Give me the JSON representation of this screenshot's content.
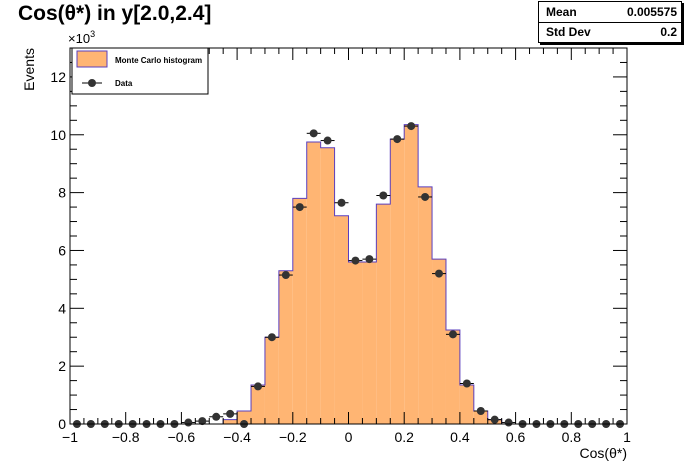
{
  "title": "Cos(θ*) in y[2.0,2.4]",
  "stats": {
    "mean_label": "Mean",
    "mean_value": "0.005575",
    "std_label": "Std Dev",
    "std_value": "0.2"
  },
  "chart_data": {
    "type": "bar",
    "title": "Cos(θ*) in y[2.0,2.4]",
    "xlabel": "Cos(θ*)",
    "ylabel": "Events",
    "y_multiplier_label": "×10",
    "y_multiplier_exponent": "3",
    "xlim": [
      -1,
      1
    ],
    "ylim": [
      0,
      13000
    ],
    "x_ticks": [
      "−1",
      "−0.8",
      "−0.6",
      "−0.4",
      "−0.2",
      "0",
      "0.2",
      "0.4",
      "0.6",
      "0.8",
      "1"
    ],
    "x_tick_values": [
      -1,
      -0.8,
      -0.6,
      -0.4,
      -0.2,
      0,
      0.2,
      0.4,
      0.6,
      0.8,
      1
    ],
    "y_ticks": [
      "0",
      "2",
      "4",
      "6",
      "8",
      "10",
      "12"
    ],
    "y_tick_values": [
      0,
      2000,
      4000,
      6000,
      8000,
      10000,
      12000
    ],
    "grid": false,
    "legend_position": "top-left",
    "bin_edges": [
      -1,
      -0.95,
      -0.9,
      -0.85,
      -0.8,
      -0.75,
      -0.7,
      -0.65,
      -0.6,
      -0.55,
      -0.5,
      -0.45,
      -0.4,
      -0.35,
      -0.3,
      -0.25,
      -0.2,
      -0.15,
      -0.1,
      -0.05,
      0,
      0.05,
      0.1,
      0.15,
      0.2,
      0.25,
      0.3,
      0.35,
      0.4,
      0.45,
      0.5,
      0.55,
      0.6,
      0.65,
      0.7,
      0.75,
      0.8,
      0.85,
      0.9,
      0.95,
      1
    ],
    "series": [
      {
        "name": "Monte Carlo histogram",
        "style": "filled-histogram",
        "fill_color": "#ffb573",
        "line_color": "#5a3fbf",
        "values": [
          0,
          0,
          0,
          0,
          0,
          0,
          0,
          0,
          0,
          0,
          0,
          150,
          450,
          1350,
          3000,
          5300,
          7800,
          9750,
          9550,
          7200,
          5600,
          5600,
          7600,
          9850,
          10350,
          8200,
          5700,
          3250,
          1350,
          450,
          150,
          0,
          0,
          0,
          0,
          0,
          0,
          0,
          0,
          0
        ]
      },
      {
        "name": "Data",
        "style": "markers-with-errors",
        "marker_color": "#333333",
        "values": [
          0,
          0,
          0,
          0,
          0,
          0,
          0,
          0,
          50,
          100,
          250,
          350,
          0,
          1300,
          3000,
          5150,
          7500,
          10050,
          9800,
          7650,
          5650,
          5700,
          7900,
          9850,
          10300,
          7850,
          5200,
          3100,
          1400,
          450,
          150,
          50,
          0,
          0,
          0,
          0,
          0,
          0,
          0,
          0
        ]
      }
    ]
  }
}
